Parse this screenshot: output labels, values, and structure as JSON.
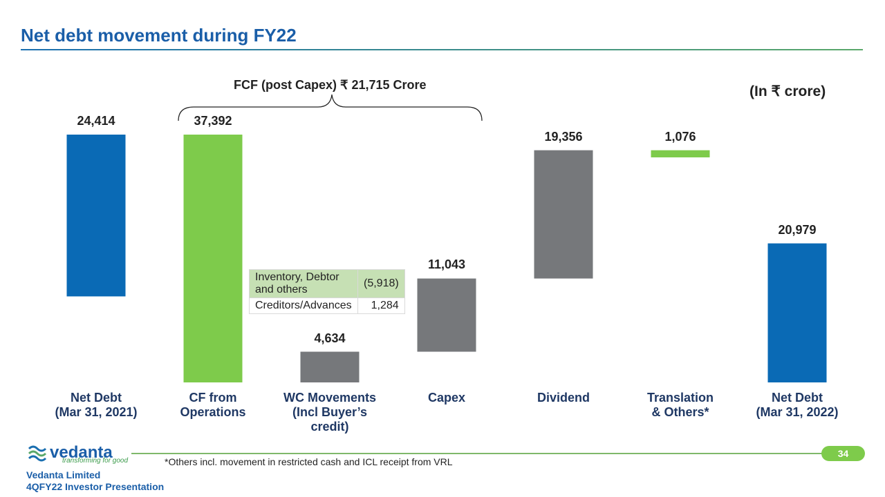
{
  "chart_data": {
    "type": "waterfall",
    "title": "Net debt movement during FY22",
    "unit_note": "(In ₹ crore)",
    "annotation": "FCF (post Capex) ₹ 21,715 Crore",
    "categories": [
      "Net Debt\n(Mar 31, 2021)",
      "CF from\nOperations",
      "WC Movements\n(Incl Buyer’s\ncredit)",
      "Capex",
      "Dividend",
      "Translation\n& Others*",
      "Net Debt\n(Mar 31, 2022)"
    ],
    "values": [
      24414,
      37392,
      4634,
      11043,
      19356,
      1076,
      20979
    ],
    "value_labels": [
      "24,414",
      "37,392",
      "4,634",
      "11,043",
      "19,356",
      "1,076",
      "20,979"
    ],
    "colors": [
      "#0a6ab5",
      "#7ecb4b",
      "#76787b",
      "#76787b",
      "#76787b",
      "#7ecb4b",
      "#0a6ab5"
    ],
    "table": {
      "rows": [
        [
          "Inventory, Debtor and others",
          "(5,918)"
        ],
        [
          "Creditors/Advances",
          "1,284"
        ]
      ]
    },
    "footnote": "*Others incl. movement in restricted cash and ICL receipt from VRL"
  },
  "footer": {
    "logo": "vedanta",
    "tagline": "transforming for good",
    "company": "Vedanta Limited",
    "presentation": "4QFY22 Investor Presentation",
    "page": "34"
  }
}
